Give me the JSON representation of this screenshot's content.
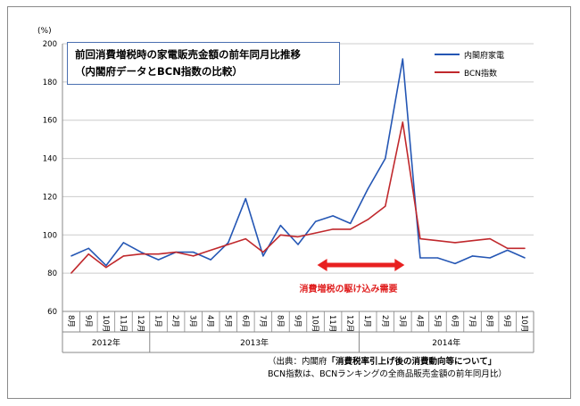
{
  "title": {
    "line1": "前回消費増税時の家電販売金額の前年同月比推移",
    "line2": "（内閣府データとBCN指数の比較）"
  },
  "annotation": "消費増税の駆け込み需要",
  "source": {
    "prefix": "（出典：内閣府",
    "title": "「消費税率引上げ後の消費動向等について」",
    "line2": "BCN指数は、BCNランキングの全商品販売金額の前年同月比）"
  },
  "colors": {
    "cabinet": "#2456b4",
    "bcn": "#c0282c",
    "annotation": "#e82020",
    "grid": "#cccccc",
    "axis": "#888888"
  },
  "chart_data": {
    "type": "line",
    "ylabel": "(%)",
    "ylim": [
      60,
      200
    ],
    "yticks": [
      60,
      80,
      100,
      120,
      140,
      160,
      180,
      200
    ],
    "grid": true,
    "legend_position": "top-right",
    "categories": [
      "8月",
      "9月",
      "10月",
      "11月",
      "12月",
      "1月",
      "2月",
      "3月",
      "4月",
      "5月",
      "6月",
      "7月",
      "8月",
      "9月",
      "10月",
      "11月",
      "12月",
      "1月",
      "2月",
      "3月",
      "4月",
      "5月",
      "6月",
      "7月",
      "8月",
      "9月",
      "10月"
    ],
    "years": [
      {
        "label": "2012年",
        "start": 0,
        "end": 4
      },
      {
        "label": "2013年",
        "start": 5,
        "end": 16
      },
      {
        "label": "2014年",
        "start": 17,
        "end": 26
      }
    ],
    "series": [
      {
        "name": "内閣府家電",
        "color": "#2456b4",
        "values": [
          89,
          93,
          84,
          96,
          91,
          87,
          91,
          91,
          87,
          96,
          119,
          89,
          105,
          95,
          107,
          110,
          106,
          124,
          140,
          192,
          88,
          88,
          85,
          89,
          88,
          92,
          88
        ]
      },
      {
        "name": "BCN指数",
        "color": "#c0282c",
        "values": [
          80,
          90,
          83,
          89,
          90,
          90,
          91,
          89,
          92,
          95,
          98,
          91,
          100,
          99,
          101,
          103,
          103,
          108,
          115,
          159,
          98,
          97,
          96,
          97,
          98,
          93,
          93
        ]
      }
    ],
    "highlight_range": {
      "from": 14,
      "to": 19,
      "label": "消費増税の駆け込み需要"
    }
  }
}
